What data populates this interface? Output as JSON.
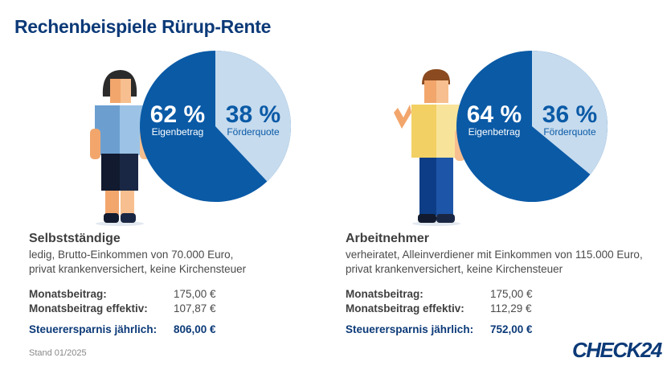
{
  "title": "Rechenbeispiele Rürup-Rente",
  "colors": {
    "dark": "#0a5aa6",
    "light": "#c6dbee",
    "navy": "#0c3a78"
  },
  "chart_data": [
    {
      "type": "pie",
      "slices": [
        {
          "label": "Eigenbetrag",
          "value": 62,
          "text": "62 %"
        },
        {
          "label": "Förderquote",
          "value": 38,
          "text": "38 %"
        }
      ]
    },
    {
      "type": "pie",
      "slices": [
        {
          "label": "Eigenbetrag",
          "value": 64,
          "text": "64 %"
        },
        {
          "label": "Förderquote",
          "value": 36,
          "text": "36 %"
        }
      ]
    }
  ],
  "examples": [
    {
      "heading": "Selbstständige",
      "desc1": "ledig, Brutto-Einkommen von 70.000 Euro,",
      "desc2": "privat krankenversichert, keine Kirchensteuer",
      "rows": [
        {
          "k": "Monatsbeitrag:",
          "v": "175,00 €"
        },
        {
          "k": "Monatsbeitrag effektiv:",
          "v": "107,87 €"
        },
        {
          "k": "Steuerersparnis jährlich:",
          "v": "806,00 €"
        }
      ]
    },
    {
      "heading": "Arbeitnehmer",
      "desc1": "verheiratet, Alleinverdiener mit Einkommen von 115.000 Euro,",
      "desc2": "privat krankenversichert, keine Kirchensteuer",
      "rows": [
        {
          "k": "Monatsbeitrag:",
          "v": "175,00 €"
        },
        {
          "k": "Monatsbeitrag effektiv:",
          "v": "112,29 €"
        },
        {
          "k": "Steuerersparnis jährlich:",
          "v": "752,00 €"
        }
      ]
    }
  ],
  "footer": {
    "stand": "Stand 01/2025",
    "logo": "CHECK24"
  }
}
